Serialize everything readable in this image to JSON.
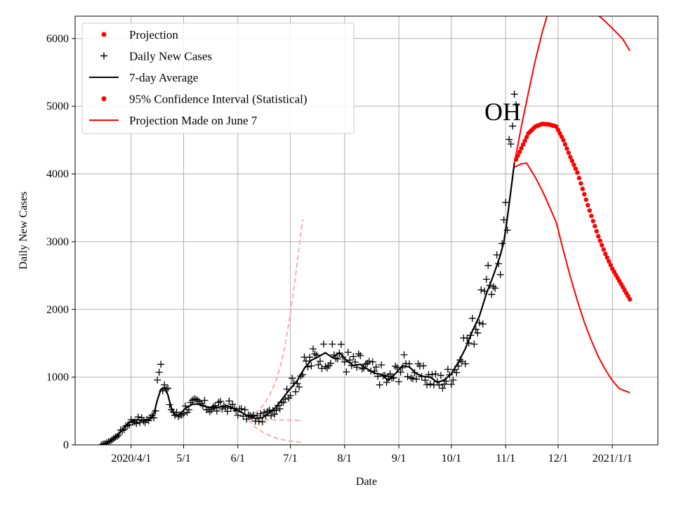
{
  "chart_data": {
    "type": "line",
    "annotation": "OH",
    "xlabel": "Date",
    "ylabel": "Daily New Cases",
    "grid": true,
    "legend_position": "top-left",
    "x_axis": {
      "unit": "days since 2020/3/1",
      "range": [
        -1,
        332
      ],
      "ticks": [
        {
          "day": 31,
          "label": "2020/4/1"
        },
        {
          "day": 61,
          "label": "5/1"
        },
        {
          "day": 92,
          "label": "6/1"
        },
        {
          "day": 122,
          "label": "7/1"
        },
        {
          "day": 153,
          "label": "8/1"
        },
        {
          "day": 184,
          "label": "9/1"
        },
        {
          "day": 214,
          "label": "10/1"
        },
        {
          "day": 245,
          "label": "11/1"
        },
        {
          "day": 275,
          "label": "12/1"
        },
        {
          "day": 306,
          "label": "2021/1/1"
        }
      ]
    },
    "y_axis": {
      "range": [
        0,
        6330
      ],
      "ticks": [
        0,
        1000,
        2000,
        3000,
        4000,
        5000,
        6000
      ]
    },
    "legend": [
      {
        "key": "projection",
        "label": "Projection",
        "marker": "dot",
        "color": "#ff0000"
      },
      {
        "key": "daily",
        "label": "Daily New Cases",
        "marker": "plus",
        "color": "#000000"
      },
      {
        "key": "avg7",
        "label": "7-day Average",
        "marker": "line",
        "color": "#000000"
      },
      {
        "key": "ci",
        "label": "95% Confidence Interval (Statistical)",
        "marker": "dot",
        "color": "#ff0000"
      },
      {
        "key": "june7",
        "label": "Projection Made on June 7",
        "marker": "line",
        "color": "#ff0000"
      }
    ],
    "series": {
      "avg7_knots": [
        [
          14,
          0
        ],
        [
          18,
          40
        ],
        [
          22,
          110
        ],
        [
          26,
          220
        ],
        [
          30,
          340
        ],
        [
          34,
          370
        ],
        [
          38,
          360
        ],
        [
          42,
          380
        ],
        [
          44,
          460
        ],
        [
          46,
          660
        ],
        [
          48,
          820
        ],
        [
          50,
          850
        ],
        [
          52,
          740
        ],
        [
          54,
          540
        ],
        [
          56,
          450
        ],
        [
          58,
          430
        ],
        [
          62,
          540
        ],
        [
          66,
          600
        ],
        [
          70,
          600
        ],
        [
          74,
          560
        ],
        [
          78,
          540
        ],
        [
          82,
          560
        ],
        [
          86,
          580
        ],
        [
          90,
          530
        ],
        [
          94,
          480
        ],
        [
          98,
          420
        ],
        [
          102,
          390
        ],
        [
          106,
          400
        ],
        [
          110,
          470
        ],
        [
          114,
          560
        ],
        [
          118,
          700
        ],
        [
          122,
          830
        ],
        [
          126,
          950
        ],
        [
          130,
          1130
        ],
        [
          134,
          1250
        ],
        [
          138,
          1300
        ],
        [
          142,
          1360
        ],
        [
          146,
          1290
        ],
        [
          150,
          1360
        ],
        [
          154,
          1250
        ],
        [
          158,
          1170
        ],
        [
          162,
          1190
        ],
        [
          166,
          1120
        ],
        [
          170,
          1060
        ],
        [
          174,
          1040
        ],
        [
          178,
          950
        ],
        [
          182,
          1050
        ],
        [
          186,
          1170
        ],
        [
          190,
          1150
        ],
        [
          194,
          1050
        ],
        [
          198,
          1010
        ],
        [
          202,
          1000
        ],
        [
          206,
          920
        ],
        [
          210,
          960
        ],
        [
          214,
          1050
        ],
        [
          218,
          1220
        ],
        [
          222,
          1420
        ],
        [
          226,
          1680
        ],
        [
          230,
          1900
        ],
        [
          234,
          2230
        ],
        [
          238,
          2500
        ],
        [
          242,
          2800
        ],
        [
          244,
          3000
        ],
        [
          246,
          3350
        ],
        [
          248,
          3750
        ],
        [
          250,
          4160
        ]
      ],
      "projection_knots": [
        [
          250,
          4160
        ],
        [
          254,
          4380
        ],
        [
          258,
          4600
        ],
        [
          262,
          4700
        ],
        [
          266,
          4740
        ],
        [
          270,
          4730
        ],
        [
          274,
          4700
        ],
        [
          278,
          4500
        ],
        [
          282,
          4250
        ],
        [
          286,
          4020
        ],
        [
          290,
          3700
        ],
        [
          294,
          3380
        ],
        [
          298,
          3080
        ],
        [
          302,
          2820
        ],
        [
          306,
          2600
        ],
        [
          310,
          2420
        ],
        [
          314,
          2240
        ],
        [
          316,
          2150
        ]
      ],
      "ci_upper_knots": [
        [
          250,
          4160
        ],
        [
          254,
          4700
        ],
        [
          258,
          5200
        ],
        [
          262,
          5680
        ],
        [
          266,
          6100
        ],
        [
          270,
          6450
        ],
        [
          272,
          6600
        ]
      ],
      "ci_upper_right_knots": [
        [
          294,
          6420
        ],
        [
          300,
          6300
        ],
        [
          306,
          6150
        ],
        [
          312,
          5990
        ],
        [
          316,
          5820
        ]
      ],
      "ci_lower_knots": [
        [
          250,
          4100
        ],
        [
          254,
          4150
        ],
        [
          257,
          4160
        ],
        [
          262,
          3950
        ],
        [
          266,
          3750
        ],
        [
          270,
          3520
        ],
        [
          274,
          3280
        ],
        [
          278,
          2870
        ],
        [
          282,
          2480
        ],
        [
          286,
          2130
        ],
        [
          290,
          1810
        ],
        [
          294,
          1540
        ],
        [
          298,
          1300
        ],
        [
          302,
          1110
        ],
        [
          306,
          950
        ],
        [
          310,
          830
        ],
        [
          316,
          770
        ]
      ],
      "june7_mid_knots": [
        [
          98,
          380
        ],
        [
          102,
          375
        ],
        [
          106,
          370
        ],
        [
          110,
          370
        ],
        [
          114,
          368
        ],
        [
          118,
          368
        ],
        [
          122,
          365
        ],
        [
          126,
          362
        ],
        [
          129,
          360
        ]
      ],
      "june7_upper_knots": [
        [
          98,
          400
        ],
        [
          102,
          470
        ],
        [
          106,
          570
        ],
        [
          110,
          720
        ],
        [
          114,
          960
        ],
        [
          118,
          1330
        ],
        [
          122,
          1930
        ],
        [
          126,
          2700
        ],
        [
          129,
          3330
        ]
      ],
      "june7_lower_knots": [
        [
          98,
          370
        ],
        [
          102,
          260
        ],
        [
          106,
          190
        ],
        [
          110,
          140
        ],
        [
          114,
          100
        ],
        [
          118,
          75
        ],
        [
          122,
          55
        ],
        [
          126,
          45
        ],
        [
          129,
          30
        ]
      ]
    }
  }
}
